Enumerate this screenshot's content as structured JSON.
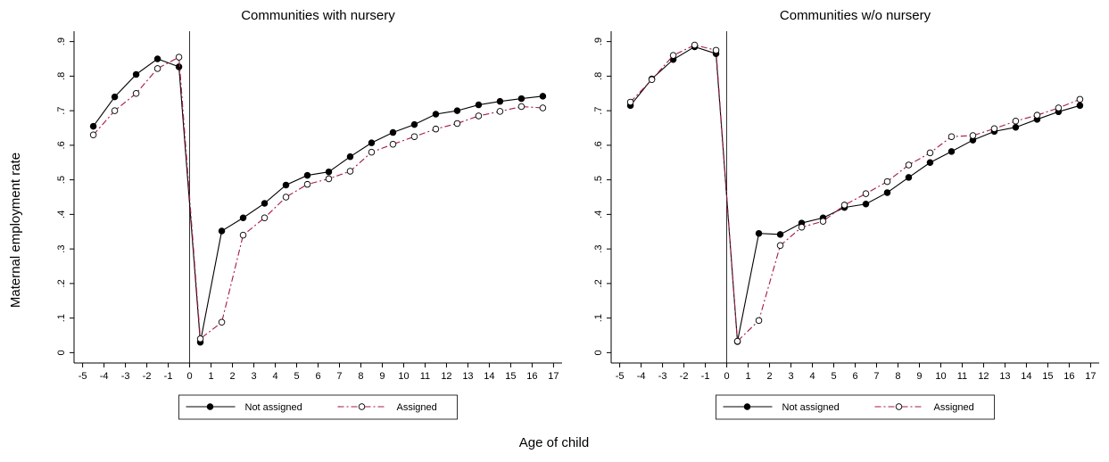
{
  "chart_data": [
    {
      "type": "line",
      "title": "Communities with nursery",
      "x": [
        -4.5,
        -3.5,
        -2.5,
        -1.5,
        -0.5,
        0.5,
        1.5,
        2.5,
        3.5,
        4.5,
        5.5,
        6.5,
        7.5,
        8.5,
        9.5,
        10.5,
        11.5,
        12.5,
        13.5,
        14.5,
        15.5,
        16.5
      ],
      "series": [
        {
          "name": "Not assigned",
          "color": "#000000",
          "style": "solid",
          "marker": "filled",
          "values": [
            0.655,
            0.74,
            0.805,
            0.85,
            0.827,
            0.03,
            0.352,
            0.39,
            0.432,
            0.485,
            0.513,
            0.523,
            0.567,
            0.607,
            0.637,
            0.66,
            0.69,
            0.7,
            0.717,
            0.727,
            0.735,
            0.742
          ]
        },
        {
          "name": "Assigned",
          "color": "#a5184a",
          "style": "dashed",
          "marker": "hollow",
          "values": [
            0.63,
            0.7,
            0.75,
            0.822,
            0.855,
            0.04,
            0.088,
            0.34,
            0.39,
            0.45,
            0.487,
            0.503,
            0.525,
            0.58,
            0.603,
            0.625,
            0.647,
            0.663,
            0.685,
            0.698,
            0.712,
            0.708
          ]
        }
      ],
      "xlim": [
        -5.4,
        17.4
      ],
      "xticks": [
        -5,
        -4,
        -3,
        -2,
        -1,
        0,
        1,
        2,
        3,
        4,
        5,
        6,
        7,
        8,
        9,
        10,
        11,
        12,
        13,
        14,
        15,
        16,
        17
      ],
      "ylim": [
        -0.03,
        0.93
      ],
      "yticks": [
        0,
        {
          "value": 0.1,
          "label": ".1"
        },
        {
          "value": 0.2,
          "label": ".2"
        },
        {
          "value": 0.3,
          "label": ".3"
        },
        {
          "value": 0.4,
          "label": ".4"
        },
        {
          "value": 0.5,
          "label": ".5"
        },
        {
          "value": 0.6,
          "label": ".6"
        },
        {
          "value": 0.7,
          "label": ".7"
        },
        {
          "value": 0.8,
          "label": ".8"
        },
        {
          "value": 0.9,
          "label": ".9"
        }
      ],
      "xline": 0
    },
    {
      "type": "line",
      "title": "Communities w/o nursery",
      "x": [
        -4.5,
        -3.5,
        -2.5,
        -1.5,
        -0.5,
        0.5,
        1.5,
        2.5,
        3.5,
        4.5,
        5.5,
        6.5,
        7.5,
        8.5,
        9.5,
        10.5,
        11.5,
        12.5,
        13.5,
        14.5,
        15.5,
        16.5
      ],
      "series": [
        {
          "name": "Not assigned",
          "color": "#000000",
          "style": "solid",
          "marker": "filled",
          "values": [
            0.715,
            0.792,
            0.848,
            0.885,
            0.865,
            0.032,
            0.345,
            0.342,
            0.375,
            0.39,
            0.42,
            0.43,
            0.463,
            0.507,
            0.55,
            0.582,
            0.615,
            0.64,
            0.652,
            0.675,
            0.697,
            0.715
          ]
        },
        {
          "name": "Assigned",
          "color": "#a5184a",
          "style": "dashed",
          "marker": "hollow",
          "values": [
            0.725,
            0.79,
            0.86,
            0.89,
            0.875,
            0.033,
            0.093,
            0.31,
            0.363,
            0.38,
            0.427,
            0.46,
            0.495,
            0.543,
            0.578,
            0.625,
            0.628,
            0.648,
            0.67,
            0.687,
            0.708,
            0.733
          ]
        }
      ],
      "xlim": [
        -5.4,
        17.4
      ],
      "xticks": [
        -5,
        -4,
        -3,
        -2,
        -1,
        0,
        1,
        2,
        3,
        4,
        5,
        6,
        7,
        8,
        9,
        10,
        11,
        12,
        13,
        14,
        15,
        16,
        17
      ],
      "ylim": [
        -0.03,
        0.93
      ],
      "yticks": [
        0,
        {
          "value": 0.1,
          "label": ".1"
        },
        {
          "value": 0.2,
          "label": ".2"
        },
        {
          "value": 0.3,
          "label": ".3"
        },
        {
          "value": 0.4,
          "label": ".4"
        },
        {
          "value": 0.5,
          "label": ".5"
        },
        {
          "value": 0.6,
          "label": ".6"
        },
        {
          "value": 0.7,
          "label": ".7"
        },
        {
          "value": 0.8,
          "label": ".8"
        },
        {
          "value": 0.9,
          "label": ".9"
        }
      ],
      "xline": 0
    }
  ],
  "xlabel": "Age of child",
  "ylabel": "Maternal employment rate"
}
